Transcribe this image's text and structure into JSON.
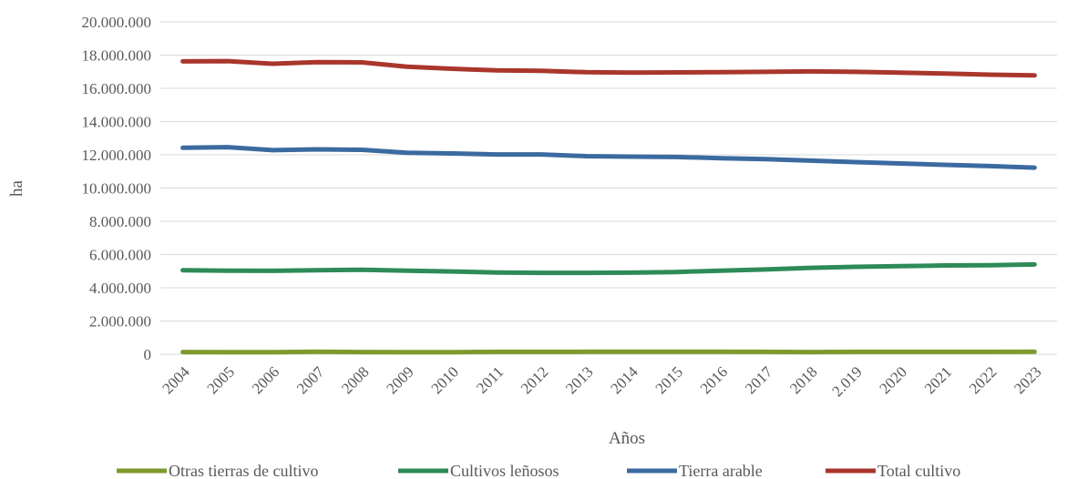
{
  "chart_data": {
    "type": "line",
    "title": "",
    "xlabel": "Años",
    "ylabel": "ha",
    "x": [
      "2004",
      "2005",
      "2006",
      "2007",
      "2008",
      "2009",
      "2010",
      "2011",
      "2012",
      "2013",
      "2014",
      "2015",
      "2016",
      "2017",
      "2018",
      "2.019",
      "2020",
      "2021",
      "2022",
      "2023"
    ],
    "y_ticks": [
      "0",
      "2.000.000",
      "4.000.000",
      "6.000.000",
      "8.000.000",
      "10.000.000",
      "12.000.000",
      "14.000.000",
      "16.000.000",
      "18.000.000",
      "20.000.000"
    ],
    "ylim": [
      0,
      20000000
    ],
    "grid": true,
    "legend_position": "bottom",
    "series": [
      {
        "name": "Otras tierras de cultivo",
        "color": "#7f9a2c",
        "values": [
          130000,
          120000,
          125000,
          150000,
          130000,
          120000,
          125000,
          140000,
          145000,
          150000,
          150000,
          150000,
          150000,
          145000,
          130000,
          140000,
          145000,
          145000,
          145000,
          150000
        ]
      },
      {
        "name": "Cultivos leñosos",
        "color": "#2e8b57",
        "values": [
          5050000,
          5030000,
          5020000,
          5060000,
          5080000,
          5030000,
          4980000,
          4920000,
          4900000,
          4900000,
          4910000,
          4950000,
          5030000,
          5100000,
          5200000,
          5260000,
          5300000,
          5340000,
          5360000,
          5400000
        ]
      },
      {
        "name": "Tierra arable",
        "color": "#3b6aa0",
        "values": [
          12420000,
          12460000,
          12280000,
          12330000,
          12300000,
          12120000,
          12080000,
          12020000,
          12020000,
          11920000,
          11890000,
          11870000,
          11800000,
          11740000,
          11650000,
          11560000,
          11480000,
          11400000,
          11320000,
          11230000
        ]
      },
      {
        "name": "Total cultivo",
        "color": "#a9362c",
        "values": [
          17620000,
          17640000,
          17480000,
          17580000,
          17560000,
          17300000,
          17180000,
          17080000,
          17050000,
          16970000,
          16950000,
          16960000,
          16970000,
          16990000,
          17020000,
          16990000,
          16940000,
          16890000,
          16820000,
          16780000
        ]
      }
    ]
  }
}
